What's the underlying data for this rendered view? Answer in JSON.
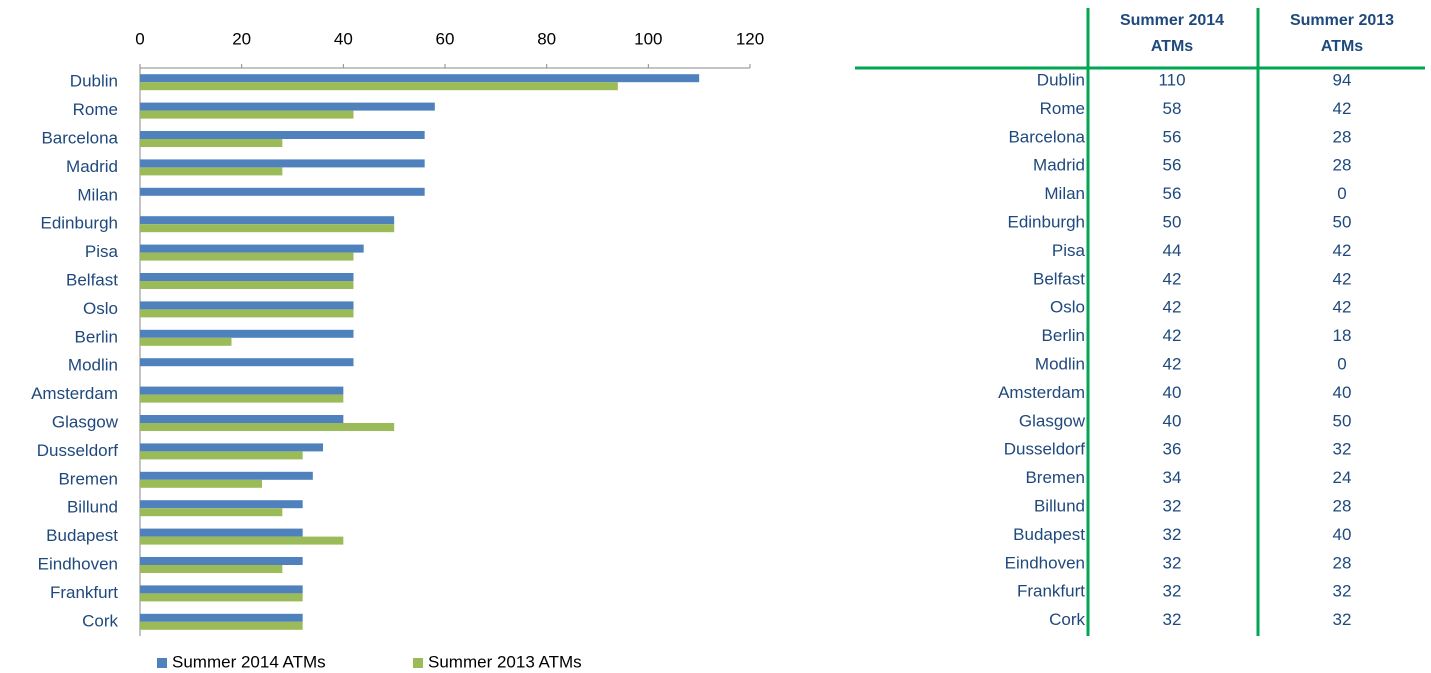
{
  "chart_data": {
    "type": "bar",
    "orientation": "horizontal",
    "categories": [
      "Dublin",
      "Rome",
      "Barcelona",
      "Madrid",
      "Milan",
      "Edinburgh",
      "Pisa",
      "Belfast",
      "Oslo",
      "Berlin",
      "Modlin",
      "Amsterdam",
      "Glasgow",
      "Dusseldorf",
      "Bremen",
      "Billund",
      "Budapest",
      "Eindhoven",
      "Frankfurt",
      "Cork"
    ],
    "series": [
      {
        "name": "Summer 2014 ATMs",
        "color": "#4f81bd",
        "values": [
          110,
          58,
          56,
          56,
          56,
          50,
          44,
          42,
          42,
          42,
          42,
          40,
          40,
          36,
          34,
          32,
          32,
          32,
          32,
          32
        ]
      },
      {
        "name": "Summer 2013 ATMs",
        "color": "#9bbb59",
        "values": [
          94,
          42,
          28,
          28,
          0,
          50,
          42,
          42,
          42,
          18,
          0,
          40,
          50,
          32,
          24,
          28,
          40,
          28,
          32,
          32
        ]
      }
    ],
    "xlim": [
      0,
      120
    ],
    "xticks": [
      0,
      20,
      40,
      60,
      80,
      100,
      120
    ],
    "grid": false,
    "legend": "bottom"
  },
  "table": {
    "columns": [
      "Summer 2014 ATMs",
      "Summer 2013 ATMs"
    ],
    "rows": [
      [
        "Dublin",
        110,
        94
      ],
      [
        "Rome",
        58,
        42
      ],
      [
        "Barcelona",
        56,
        28
      ],
      [
        "Madrid",
        56,
        28
      ],
      [
        "Milan",
        56,
        0
      ],
      [
        "Edinburgh",
        50,
        50
      ],
      [
        "Pisa",
        44,
        42
      ],
      [
        "Belfast",
        42,
        42
      ],
      [
        "Oslo",
        42,
        42
      ],
      [
        "Berlin",
        42,
        18
      ],
      [
        "Modlin",
        42,
        0
      ],
      [
        "Amsterdam",
        40,
        40
      ],
      [
        "Glasgow",
        40,
        50
      ],
      [
        "Dusseldorf",
        36,
        32
      ],
      [
        "Bremen",
        34,
        24
      ],
      [
        "Billund",
        32,
        28
      ],
      [
        "Budapest",
        32,
        40
      ],
      [
        "Eindhoven",
        32,
        28
      ],
      [
        "Frankfurt",
        32,
        32
      ],
      [
        "Cork",
        32,
        32
      ]
    ]
  }
}
